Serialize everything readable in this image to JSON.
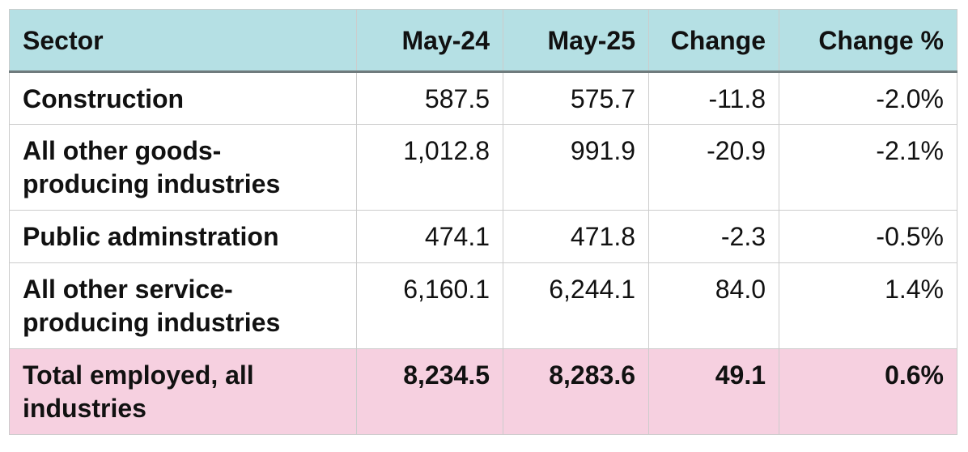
{
  "table": {
    "headers": [
      "Sector",
      "May-24",
      "May-25",
      "Change",
      "Change %"
    ],
    "rows": [
      {
        "sector": "Construction",
        "may24": "587.5",
        "may25": "575.7",
        "change": "-11.8",
        "change_pct": "-2.0%"
      },
      {
        "sector": "All other goods-producing industries",
        "may24": "1,012.8",
        "may25": "991.9",
        "change": "-20.9",
        "change_pct": "-2.1%"
      },
      {
        "sector": "Public adminstration",
        "may24": "474.1",
        "may25": "471.8",
        "change": "-2.3",
        "change_pct": "-0.5%"
      },
      {
        "sector": "All other service-producing industries",
        "may24": "6,160.1",
        "may25": "6,244.1",
        "change": "84.0",
        "change_pct": "1.4%"
      }
    ],
    "total": {
      "sector": "Total employed, all industries",
      "may24": "8,234.5",
      "may25": "8,283.6",
      "change": "49.1",
      "change_pct": "0.6%"
    }
  },
  "colors": {
    "header_bg": "#b5e0e4",
    "total_bg": "#f6d0e0",
    "border": "#cccccc",
    "header_rule": "#6f7b7d"
  }
}
